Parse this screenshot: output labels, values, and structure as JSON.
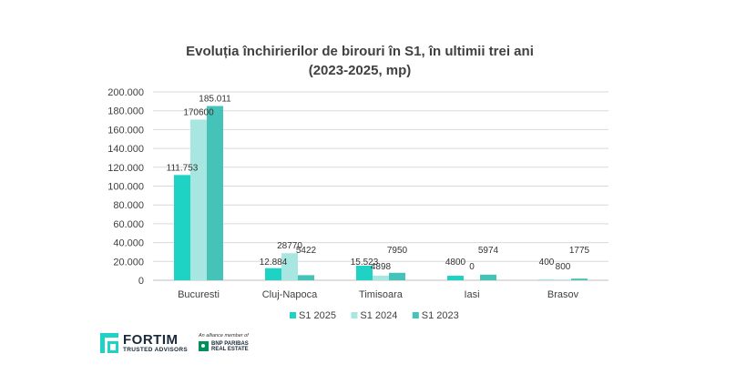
{
  "chart_data": {
    "type": "bar",
    "title_lines": [
      "Evoluția închirierilor de birouri în S1, în ultimii trei ani",
      "(2023-2025, mp)"
    ],
    "categories": [
      "Bucuresti",
      "Cluj-Napoca",
      "Timisoara",
      "Iasi",
      "Brasov"
    ],
    "series": [
      {
        "name": "S1 2025",
        "color": "#1ed3c4",
        "values": [
          111753,
          12884,
          15523,
          4800,
          400
        ],
        "labels": [
          "111.753",
          "12.884",
          "15.523",
          "4800",
          "400"
        ]
      },
      {
        "name": "S1 2024",
        "color": "#a8e6e1",
        "values": [
          170600,
          28770,
          4898,
          0,
          800
        ],
        "labels": [
          "170600",
          "28770",
          "4898",
          "0",
          "800"
        ]
      },
      {
        "name": "S1 2023",
        "color": "#46c3b8",
        "values": [
          185011,
          5422,
          7950,
          5974,
          1775
        ],
        "labels": [
          "185.011",
          "5422",
          "7950",
          "5974",
          "1775"
        ]
      }
    ],
    "ylim": [
      0,
      200000
    ],
    "yticks": [
      0,
      20000,
      40000,
      60000,
      80000,
      100000,
      120000,
      140000,
      160000,
      180000,
      200000
    ],
    "ytick_labels": [
      "0",
      "20.000",
      "40.000",
      "60.000",
      "80.000",
      "100.000",
      "120.000",
      "140.000",
      "160.000",
      "180.000",
      "200.000"
    ],
    "grid": true,
    "legend_position": "bottom"
  },
  "branding": {
    "fortim_name": "FORTIM",
    "fortim_sub": "TRUSTED ADVISORS",
    "alliance_text": "An alliance member of",
    "bnp_line1": "BNP PARIBAS",
    "bnp_line2": "REAL ESTATE"
  }
}
